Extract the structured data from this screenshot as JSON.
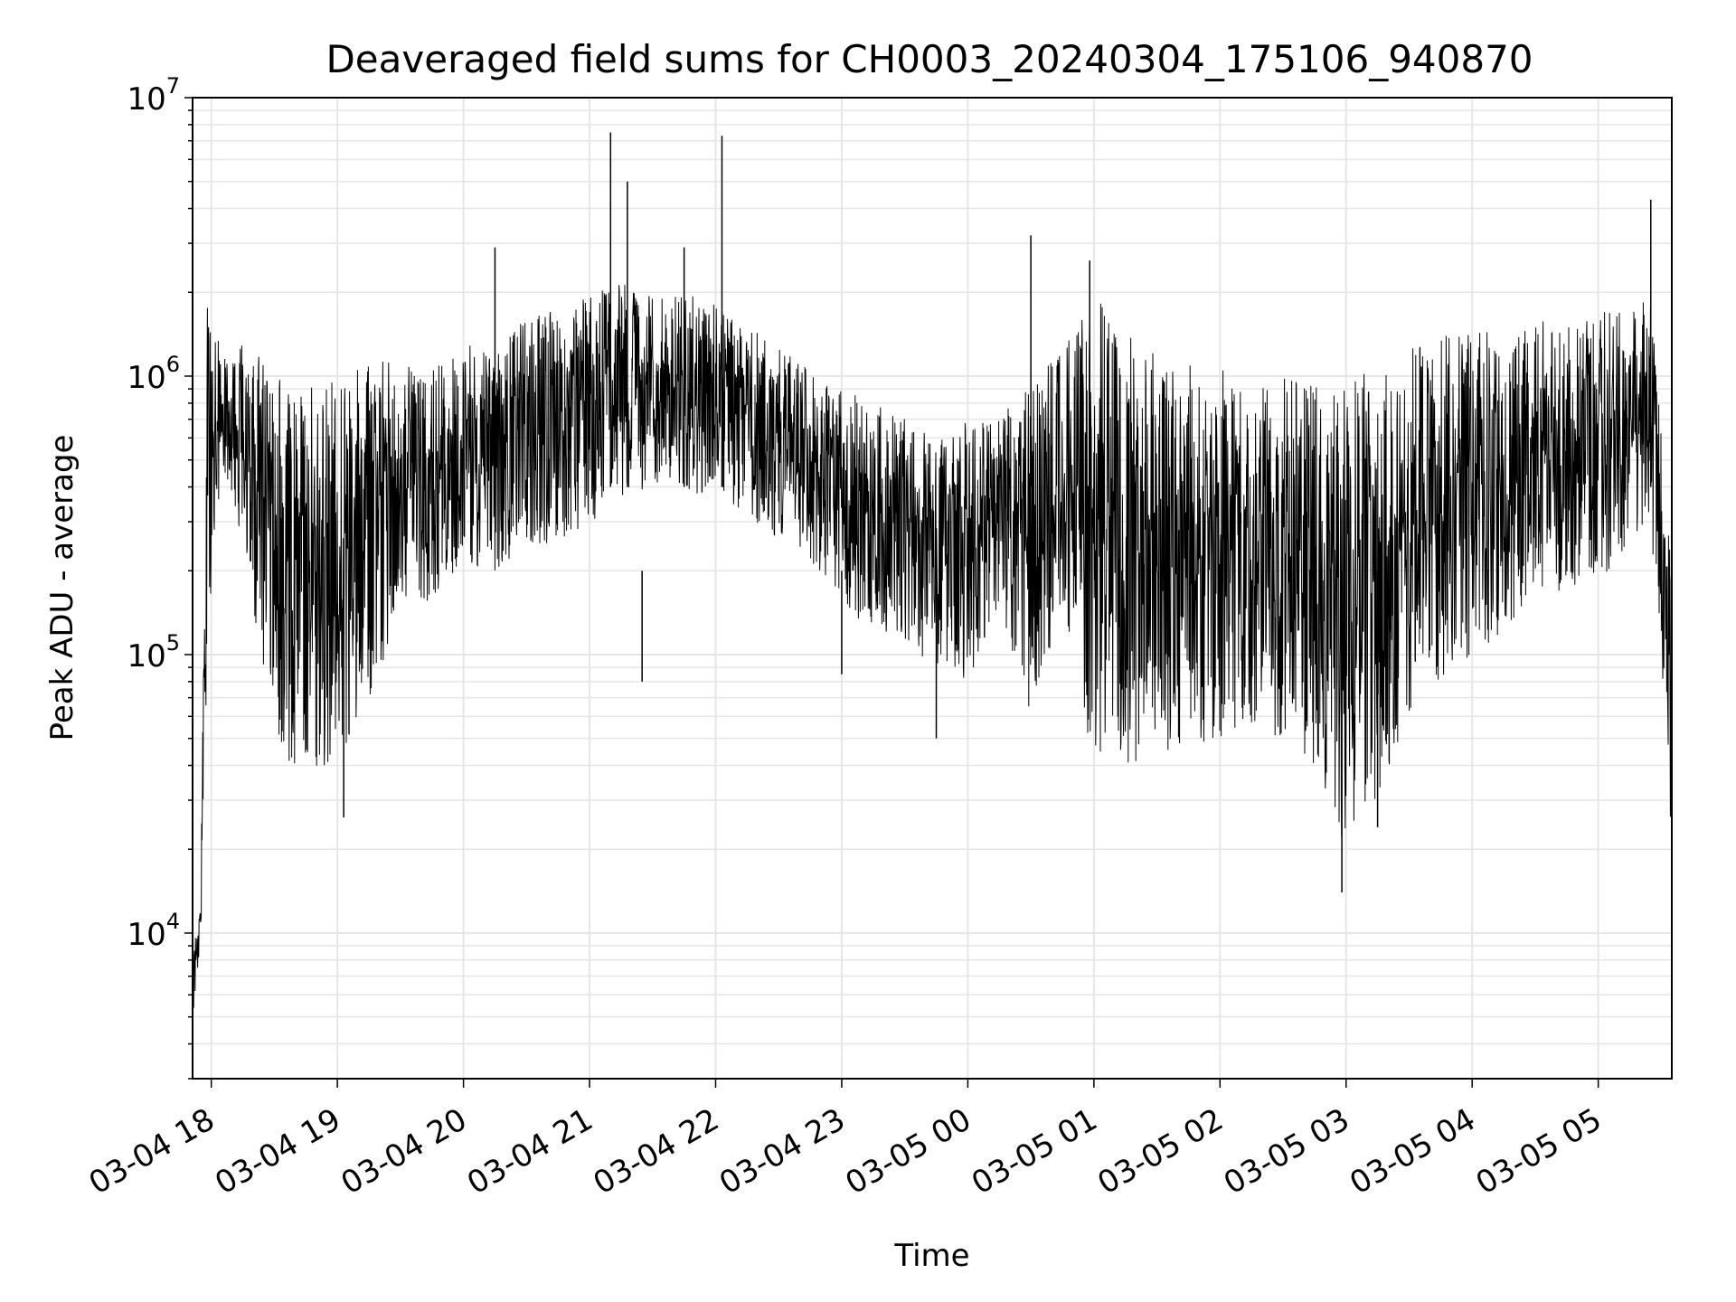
{
  "chart_data": {
    "type": "line",
    "title": "Deaveraged field sums for CH0003_20240304_175106_940870",
    "xlabel": "Time",
    "ylabel": "Peak ADU - average",
    "yscale": "log",
    "ylim": [
      3000,
      10000000
    ],
    "xlim": [
      "2024-03-04T17:51:06",
      "2024-03-05T05:35:00"
    ],
    "grid": true,
    "line_color": "#000000",
    "grid_color": "#e6e6e6",
    "x_ticks": [
      "03-04 18",
      "03-04 19",
      "03-04 20",
      "03-04 21",
      "03-04 22",
      "03-04 23",
      "03-05 00",
      "03-05 01",
      "03-05 02",
      "03-05 03",
      "03-05 04",
      "03-05 05"
    ],
    "y_ticks": [
      {
        "base": "10",
        "exp": "4",
        "value": 10000
      },
      {
        "base": "10",
        "exp": "5",
        "value": 100000
      },
      {
        "base": "10",
        "exp": "6",
        "value": 1000000
      },
      {
        "base": "10",
        "exp": "7",
        "value": 10000000
      }
    ],
    "series": [
      {
        "note_type": "envelope",
        "x": [
          "2024-03-04T17:51:06",
          "2024-03-04T17:53:00",
          "2024-03-04T17:55:00",
          "2024-03-04T17:58:00",
          "2024-03-04T18:05:00",
          "2024-03-04T18:15:00",
          "2024-03-04T18:25:00",
          "2024-03-04T18:35:00",
          "2024-03-04T18:45:00",
          "2024-03-04T19:00:00",
          "2024-03-04T19:15:00",
          "2024-03-04T19:30:00",
          "2024-03-04T19:45:00",
          "2024-03-04T20:00:00",
          "2024-03-04T20:15:00",
          "2024-03-04T20:30:00",
          "2024-03-04T20:45:00",
          "2024-03-04T21:00:00",
          "2024-03-04T21:15:00",
          "2024-03-04T21:30:00",
          "2024-03-04T21:45:00",
          "2024-03-04T22:00:00",
          "2024-03-04T22:15:00",
          "2024-03-04T22:30:00",
          "2024-03-04T22:45:00",
          "2024-03-04T23:00:00",
          "2024-03-04T23:15:00",
          "2024-03-04T23:30:00",
          "2024-03-04T23:45:00",
          "2024-03-05T00:00:00",
          "2024-03-05T00:15:00",
          "2024-03-05T00:30:00",
          "2024-03-05T00:45:00",
          "2024-03-05T01:00:00",
          "2024-03-05T01:15:00",
          "2024-03-05T01:30:00",
          "2024-03-05T01:45:00",
          "2024-03-05T02:00:00",
          "2024-03-05T02:15:00",
          "2024-03-05T02:30:00",
          "2024-03-05T02:45:00",
          "2024-03-05T03:00:00",
          "2024-03-05T03:15:00",
          "2024-03-05T03:30:00",
          "2024-03-05T03:45:00",
          "2024-03-05T04:00:00",
          "2024-03-05T04:15:00",
          "2024-03-05T04:30:00",
          "2024-03-05T04:45:00",
          "2024-03-05T05:00:00",
          "2024-03-05T05:15:00",
          "2024-03-05T05:25:00",
          "2024-03-05T05:35:00"
        ],
        "low": [
          4500,
          7000,
          9000,
          100000,
          500000,
          250000,
          80000,
          40000,
          35000,
          40000,
          60000,
          150000,
          150000,
          200000,
          200000,
          250000,
          250000,
          300000,
          350000,
          400000,
          400000,
          350000,
          300000,
          250000,
          220000,
          150000,
          120000,
          110000,
          90000,
          80000,
          150000,
          60000,
          150000,
          40000,
          40000,
          40000,
          45000,
          50000,
          55000,
          50000,
          40000,
          20000,
          30000,
          60000,
          80000,
          100000,
          120000,
          150000,
          170000,
          180000,
          200000,
          300000,
          21000
        ],
        "high": [
          8000,
          11000,
          13000,
          2000000,
          1200000,
          1400000,
          1200000,
          1000000,
          1000000,
          1000000,
          1200000,
          1100000,
          1100000,
          1300000,
          1400000,
          1600000,
          1800000,
          2000000,
          2200000,
          2000000,
          2000000,
          1800000,
          1500000,
          1300000,
          1100000,
          900000,
          800000,
          700000,
          600000,
          700000,
          700000,
          1000000,
          1300000,
          2000000,
          1500000,
          1200000,
          1100000,
          1100000,
          1000000,
          1000000,
          950000,
          1000000,
          1100000,
          1300000,
          1400000,
          1500000,
          1500000,
          1600000,
          1600000,
          1700000,
          1700000,
          2000000,
          200000
        ]
      }
    ],
    "spikes": [
      {
        "x": "2024-03-04T21:10:00",
        "y": 7500000
      },
      {
        "x": "2024-03-04T21:18:00",
        "y": 5000000
      },
      {
        "x": "2024-03-04T22:03:00",
        "y": 7300000
      },
      {
        "x": "2024-03-05T00:30:00",
        "y": 3200000
      },
      {
        "x": "2024-03-05T00:58:00",
        "y": 2600000
      },
      {
        "x": "2024-03-05T05:25:00",
        "y": 4300000
      },
      {
        "x": "2024-03-04T20:15:00",
        "y": 2900000
      },
      {
        "x": "2024-03-04T21:45:00",
        "y": 2900000
      }
    ],
    "dips": [
      {
        "x": "2024-03-04T19:03:00",
        "y": 26000
      },
      {
        "x": "2024-03-04T21:25:00",
        "y": 80000
      },
      {
        "x": "2024-03-04T23:00:00",
        "y": 85000
      },
      {
        "x": "2024-03-04T23:45:00",
        "y": 50000
      },
      {
        "x": "2024-03-05T02:58:00",
        "y": 14000
      },
      {
        "x": "2024-03-05T03:15:00",
        "y": 24000
      }
    ]
  }
}
